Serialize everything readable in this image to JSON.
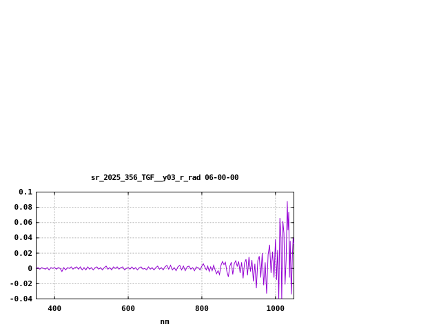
{
  "page": {
    "background": "#ffffff"
  },
  "chart_data": {
    "type": "line",
    "title": "sr_2025_356_TGF__y03_r_rad 06-00-00",
    "xlabel": "nm",
    "ylabel": "",
    "xlim": [
      350,
      1050
    ],
    "ylim": [
      -0.04,
      0.1
    ],
    "grid": true,
    "legend_position": "none",
    "colors": {
      "line": "#9400d3",
      "grid": "#b5b5b5",
      "border": "#000000",
      "text": "#000000"
    },
    "x_ticks": [
      {
        "value": 400,
        "label": "400"
      },
      {
        "value": 600,
        "label": "600"
      },
      {
        "value": 800,
        "label": "800"
      },
      {
        "value": 1000,
        "label": "1000"
      }
    ],
    "y_ticks": [
      {
        "value": 0.1,
        "label": "0.1"
      },
      {
        "value": 0.08,
        "label": "0.08"
      },
      {
        "value": 0.06,
        "label": "0.06"
      },
      {
        "value": 0.04,
        "label": "0.04"
      },
      {
        "value": 0.02,
        "label": "0.02"
      },
      {
        "value": 0,
        "label": "0"
      },
      {
        "value": -0.02,
        "label": "-0.02"
      },
      {
        "value": -0.04,
        "label": "-0.04"
      }
    ],
    "series": [
      {
        "name": "sr_2025_356_TGF__y03_r_rad 06-00-00",
        "color": "#9400d3",
        "points": [
          [
            350,
            0
          ],
          [
            355,
            0.001
          ],
          [
            360,
            -0.001
          ],
          [
            365,
            0.001
          ],
          [
            370,
            0
          ],
          [
            375,
            -0.001
          ],
          [
            380,
            0.001
          ],
          [
            385,
            -0.002
          ],
          [
            390,
            0.001
          ],
          [
            395,
            0
          ],
          [
            400,
            0.001
          ],
          [
            405,
            -0.001
          ],
          [
            410,
            0.001
          ],
          [
            415,
            0
          ],
          [
            420,
            -0.004
          ],
          [
            425,
            0.001
          ],
          [
            430,
            -0.002
          ],
          [
            435,
            0.001
          ],
          [
            440,
            0
          ],
          [
            445,
            0.002
          ],
          [
            450,
            -0.001
          ],
          [
            455,
            0.001
          ],
          [
            460,
            0.002
          ],
          [
            465,
            -0.001
          ],
          [
            470,
            0.002
          ],
          [
            475,
            -0.002
          ],
          [
            480,
            0.001
          ],
          [
            485,
            -0.002
          ],
          [
            490,
            0.002
          ],
          [
            495,
            -0.001
          ],
          [
            500,
            0.001
          ],
          [
            505,
            -0.002
          ],
          [
            510,
            0.001
          ],
          [
            515,
            0.002
          ],
          [
            520,
            -0.001
          ],
          [
            525,
            0.001
          ],
          [
            530,
            -0.002
          ],
          [
            535,
            0.001
          ],
          [
            540,
            0.003
          ],
          [
            545,
            -0.001
          ],
          [
            550,
            0.001
          ],
          [
            555,
            -0.002
          ],
          [
            560,
            0.002
          ],
          [
            565,
            0
          ],
          [
            570,
            0.002
          ],
          [
            575,
            -0.001
          ],
          [
            580,
            0.001
          ],
          [
            585,
            0.002
          ],
          [
            590,
            -0.002
          ],
          [
            595,
            0
          ],
          [
            600,
            0.001
          ],
          [
            605,
            -0.001
          ],
          [
            610,
            0.002
          ],
          [
            615,
            -0.001
          ],
          [
            620,
            0.001
          ],
          [
            625,
            -0.002
          ],
          [
            630,
            0.001
          ],
          [
            635,
            0.002
          ],
          [
            640,
            -0.001
          ],
          [
            645,
            0
          ],
          [
            650,
            -0.002
          ],
          [
            655,
            0.002
          ],
          [
            660,
            -0.001
          ],
          [
            665,
            0.001
          ],
          [
            670,
            -0.002
          ],
          [
            675,
            0.001
          ],
          [
            680,
            0.003
          ],
          [
            685,
            -0.001
          ],
          [
            690,
            0.001
          ],
          [
            695,
            -0.002
          ],
          [
            700,
            0.002
          ],
          [
            705,
            0.004
          ],
          [
            710,
            -0.001
          ],
          [
            715,
            0.004
          ],
          [
            720,
            -0.002
          ],
          [
            725,
            0.001
          ],
          [
            730,
            -0.003
          ],
          [
            735,
            0.002
          ],
          [
            740,
            0.004
          ],
          [
            745,
            -0.002
          ],
          [
            750,
            0.003
          ],
          [
            755,
            -0.003
          ],
          [
            760,
            0.002
          ],
          [
            765,
            0.003
          ],
          [
            770,
            -0.001
          ],
          [
            775,
            0.001
          ],
          [
            780,
            -0.003
          ],
          [
            785,
            0.002
          ],
          [
            790,
            0.001
          ],
          [
            795,
            -0.002
          ],
          [
            800,
            0.003
          ],
          [
            804,
            0.006
          ],
          [
            808,
            0.002
          ],
          [
            812,
            -0.002
          ],
          [
            816,
            0.003
          ],
          [
            820,
            -0.004
          ],
          [
            824,
            0.002
          ],
          [
            828,
            -0.003
          ],
          [
            832,
            0.004
          ],
          [
            836,
            -0.002
          ],
          [
            840,
            -0.007
          ],
          [
            844,
            -0.003
          ],
          [
            848,
            -0.008
          ],
          [
            852,
            0.004
          ],
          [
            856,
            0.009
          ],
          [
            860,
            0.005
          ],
          [
            864,
            0.008
          ],
          [
            868,
            -0.004
          ],
          [
            872,
            -0.011
          ],
          [
            876,
            0.003
          ],
          [
            880,
            0.008
          ],
          [
            884,
            -0.008
          ],
          [
            888,
            0.006
          ],
          [
            892,
            0.01
          ],
          [
            896,
            0.003
          ],
          [
            900,
            0.009
          ],
          [
            904,
            -0.006
          ],
          [
            908,
            0.008
          ],
          [
            912,
            -0.013
          ],
          [
            916,
            0.007
          ],
          [
            920,
            0.012
          ],
          [
            924,
            -0.009
          ],
          [
            928,
            0.015
          ],
          [
            932,
            -0.004
          ],
          [
            936,
            0.011
          ],
          [
            940,
            -0.017
          ],
          [
            944,
            0.006
          ],
          [
            948,
            -0.026
          ],
          [
            952,
            0.01
          ],
          [
            956,
            0.016
          ],
          [
            960,
            -0.012
          ],
          [
            964,
            0.02
          ],
          [
            968,
            -0.022
          ],
          [
            972,
            0.008
          ],
          [
            976,
            -0.033
          ],
          [
            980,
            0.018
          ],
          [
            984,
            0.031
          ],
          [
            988,
            -0.006
          ],
          [
            992,
            0.022
          ],
          [
            996,
            -0.012
          ],
          [
            1000,
            0.038
          ],
          [
            1003,
            -0.015
          ],
          [
            1006,
            0.024
          ],
          [
            1009,
            -0.04
          ],
          [
            1012,
            0.066
          ],
          [
            1015,
            0.04
          ],
          [
            1017,
            -0.04
          ],
          [
            1020,
            0.062
          ],
          [
            1023,
            0.046
          ],
          [
            1026,
            -0.021
          ],
          [
            1029,
            0.012
          ],
          [
            1032,
            0.088
          ],
          [
            1034,
            0.05
          ],
          [
            1036,
            0.074
          ],
          [
            1038,
            -0.012
          ],
          [
            1040,
            0.036
          ],
          [
            1043,
            -0.034
          ],
          [
            1046,
            0.018
          ],
          [
            1048,
            0.04
          ],
          [
            1050,
            0.032
          ]
        ]
      }
    ]
  }
}
